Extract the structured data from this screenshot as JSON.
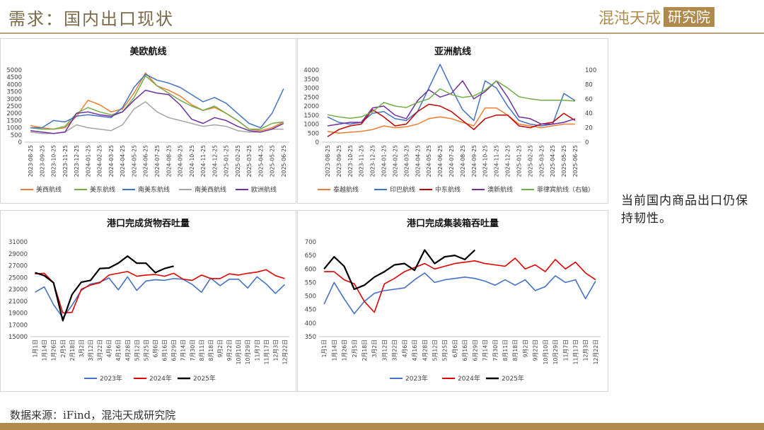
{
  "header": {
    "title": "需求：国内出口现状",
    "logo_text": "混沌天成",
    "logo_box": "研究院"
  },
  "side_note": "当前国内商品出口仍保持韧性。",
  "footer": {
    "source": "数据来源：iFind，混沌天成研究院"
  },
  "colors": {
    "accent": "#b08a4a"
  },
  "chart_data": [
    {
      "id": "c1",
      "type": "line",
      "title": "美欧航线",
      "x": [
        "2023-08-25",
        "2023-09-25",
        "2023-10-25",
        "2023-11-25",
        "2023-12-25",
        "2024-01-25",
        "2024-02-25",
        "2024-03-25",
        "2024-04-25",
        "2024-05-25",
        "2024-06-25",
        "2024-07-25",
        "2024-08-25",
        "2024-09-25",
        "2024-10-25",
        "2024-11-25",
        "2024-12-25",
        "2025-01-25",
        "2025-02-25",
        "2025-03-25",
        "2025-04-25",
        "2025-05-25",
        "2025-06-25"
      ],
      "ylim": [
        0,
        5000
      ],
      "yticks": [
        0,
        500,
        1000,
        1500,
        2000,
        2500,
        3000,
        3500,
        4000,
        4500,
        5000
      ],
      "series": [
        {
          "name": "美西航线",
          "color": "#ed7d31",
          "values": [
            1150,
            1000,
            900,
            1000,
            1800,
            2900,
            2600,
            2100,
            2300,
            3400,
            4800,
            3900,
            3600,
            3200,
            2600,
            2200,
            2400,
            2000,
            1500,
            900,
            800,
            1000,
            1400
          ]
        },
        {
          "name": "美东航线",
          "color": "#70ad47",
          "values": [
            1000,
            900,
            900,
            1100,
            2000,
            2400,
            2100,
            1900,
            2100,
            3100,
            4600,
            3900,
            3400,
            2900,
            2500,
            2200,
            2500,
            2000,
            1500,
            900,
            900,
            1300,
            1400
          ]
        },
        {
          "name": "南美东航线",
          "color": "#4472c4",
          "values": [
            1000,
            1000,
            1500,
            1400,
            1800,
            1900,
            1800,
            1700,
            2400,
            3800,
            4700,
            4300,
            4100,
            3800,
            3300,
            2800,
            3100,
            2700,
            2000,
            1300,
            1000,
            2000,
            3700
          ]
        },
        {
          "name": "南美西航线",
          "color": "#a5a5a5",
          "values": [
            700,
            600,
            600,
            700,
            1200,
            1000,
            900,
            800,
            1200,
            2300,
            2800,
            2100,
            1700,
            1500,
            1300,
            1100,
            1200,
            1100,
            800,
            700,
            700,
            900,
            900
          ]
        },
        {
          "name": "欧洲航线",
          "color": "#7030a0",
          "values": [
            800,
            700,
            600,
            700,
            2000,
            2100,
            1900,
            1800,
            2100,
            2900,
            3600,
            3400,
            3300,
            2600,
            1600,
            1300,
            1700,
            1500,
            1100,
            800,
            700,
            900,
            1300
          ]
        }
      ],
      "legend_right_axis": ""
    },
    {
      "id": "c2",
      "type": "line",
      "title": "亚洲航线",
      "x": [
        "2023-08-25",
        "2023-09-25",
        "2023-10-25",
        "2023-11-25",
        "2023-12-25",
        "2024-01-25",
        "2024-02-25",
        "2024-03-25",
        "2024-04-25",
        "2024-05-25",
        "2024-06-25",
        "2024-07-25",
        "2024-08-25",
        "2024-09-25",
        "2024-10-25",
        "2024-11-25",
        "2024-12-25",
        "2025-01-25",
        "2025-02-25",
        "2025-03-25",
        "2025-04-25",
        "2025-05-25",
        "2025-06-25"
      ],
      "ylim": [
        0,
        4000
      ],
      "yticks": [
        0,
        500,
        1000,
        1500,
        2000,
        2500,
        3000,
        3500,
        4000
      ],
      "y2lim": [
        0,
        100
      ],
      "y2ticks": [
        0,
        20,
        40,
        60,
        80,
        100
      ],
      "series": [
        {
          "name": "泰越航线",
          "color": "#ed7d31",
          "axis": "left",
          "values": [
            600,
            500,
            550,
            600,
            700,
            900,
            800,
            850,
            1000,
            1300,
            1400,
            1300,
            1100,
            900,
            1900,
            1900,
            1500,
            1000,
            900,
            800,
            900,
            1000,
            1000
          ]
        },
        {
          "name": "印巴航线",
          "color": "#4472c4",
          "axis": "left",
          "values": [
            1400,
            1100,
            1000,
            1100,
            1600,
            1700,
            1300,
            1200,
            1700,
            3000,
            5000,
            3000,
            1800,
            1200,
            3400,
            3000,
            2000,
            1200,
            1000,
            900,
            1000,
            2700,
            2300
          ]
        },
        {
          "name": "中东航线",
          "color": "#c00000",
          "axis": "left",
          "values": [
            300,
            700,
            900,
            1000,
            1800,
            1400,
            900,
            1000,
            1700,
            2100,
            2000,
            1700,
            1200,
            700,
            1300,
            1500,
            1500,
            900,
            800,
            1000,
            1100,
            1600,
            1200
          ]
        },
        {
          "name": "澳新航线",
          "color": "#7030a0",
          "axis": "left",
          "values": [
            900,
            1000,
            1100,
            1100,
            1900,
            2000,
            1500,
            1300,
            2300,
            2900,
            2500,
            2700,
            3400,
            2400,
            2800,
            3400,
            2500,
            1400,
            1300,
            1000,
            1000,
            1100,
            1300
          ]
        },
        {
          "name": "菲律宾航线（右轴）",
          "color": "#70ad47",
          "axis": "right",
          "values": [
            38,
            35,
            33,
            35,
            42,
            55,
            50,
            48,
            55,
            60,
            74,
            66,
            62,
            64,
            72,
            85,
            75,
            63,
            60,
            58,
            58,
            58,
            57
          ]
        }
      ]
    },
    {
      "id": "c3",
      "type": "line",
      "title": "港口完成货物吞吐量",
      "x": [
        "1月1日",
        "1月14日",
        "1月26日",
        "2月5日",
        "2月18日",
        "3月2日",
        "3月12日",
        "3月22日",
        "4月6日",
        "4月16日",
        "4月28日",
        "5月12日",
        "5月25日",
        "6月6日",
        "6月16日",
        "6月29日",
        "7月14日",
        "7月30日",
        "8月11日",
        "8月18日",
        "9月2日",
        "9月22日",
        "10月10日",
        "10月29日",
        "11月7日",
        "11月17日",
        "12月3日",
        "12月22日"
      ],
      "ylim": [
        15000,
        31000
      ],
      "yticks": [
        15000,
        17000,
        19000,
        21000,
        23000,
        25000,
        27000,
        29000,
        31000
      ],
      "series": [
        {
          "name": "2023年",
          "color": "#4472c4",
          "values": [
            22500,
            23400,
            20400,
            18200,
            20300,
            22800,
            23900,
            24200,
            24900,
            22900,
            25100,
            22800,
            24400,
            24600,
            24500,
            24800,
            24700,
            23800,
            22500,
            24900,
            23600,
            24700,
            24700,
            23200,
            25100,
            23900,
            22300,
            23800
          ]
        },
        {
          "name": "2024年",
          "color": "#e00000",
          "values": [
            25600,
            25700,
            24100,
            19000,
            19100,
            23000,
            23700,
            24100,
            25400,
            25700,
            26000,
            25200,
            25400,
            25500,
            25200,
            25700,
            24700,
            24500,
            25400,
            24800,
            24800,
            25600,
            25400,
            25700,
            25900,
            26300,
            25300,
            24800
          ]
        },
        {
          "name": "2025年",
          "color": "#000000",
          "values": [
            25800,
            25300,
            24100,
            17700,
            22100,
            24200,
            24500,
            26500,
            26600,
            27400,
            28600,
            27400,
            27400,
            25800,
            26500,
            26900,
            null,
            null,
            null,
            null,
            null,
            null,
            null,
            null,
            null,
            null,
            null,
            null
          ]
        }
      ]
    },
    {
      "id": "c4",
      "type": "line",
      "title": "港口完成集装箱吞吐量",
      "x": [
        "1月1日",
        "1月14日",
        "1月26日",
        "2月5日",
        "2月18日",
        "3月2日",
        "3月12日",
        "3月22日",
        "4月6日",
        "4月16日",
        "4月28日",
        "5月12日",
        "5月25日",
        "6月6日",
        "6月16日",
        "6月29日",
        "7月14日",
        "7月30日",
        "8月11日",
        "8月18日",
        "9月2日",
        "9月22日",
        "10月10日",
        "10月29日",
        "11月7日",
        "11月17日",
        "12月3日",
        "12月22日"
      ],
      "ylim": [
        350,
        700
      ],
      "yticks": [
        350,
        400,
        450,
        500,
        550,
        600,
        650,
        700
      ],
      "series": [
        {
          "name": "2023年",
          "color": "#4472c4",
          "values": [
            470,
            550,
            490,
            435,
            480,
            510,
            520,
            525,
            530,
            560,
            585,
            550,
            560,
            565,
            570,
            565,
            555,
            540,
            560,
            540,
            560,
            520,
            535,
            575,
            550,
            560,
            490,
            555
          ]
        },
        {
          "name": "2024年",
          "color": "#e00000",
          "values": [
            590,
            590,
            560,
            545,
            480,
            440,
            545,
            565,
            590,
            605,
            620,
            600,
            610,
            620,
            625,
            630,
            620,
            615,
            610,
            640,
            600,
            615,
            590,
            635,
            600,
            625,
            585,
            560
          ]
        },
        {
          "name": "2025年",
          "color": "#000000",
          "values": [
            600,
            645,
            610,
            525,
            540,
            570,
            590,
            615,
            620,
            595,
            670,
            620,
            645,
            650,
            635,
            670,
            null,
            null,
            null,
            null,
            null,
            null,
            null,
            null,
            null,
            null,
            null,
            null
          ]
        }
      ]
    }
  ]
}
